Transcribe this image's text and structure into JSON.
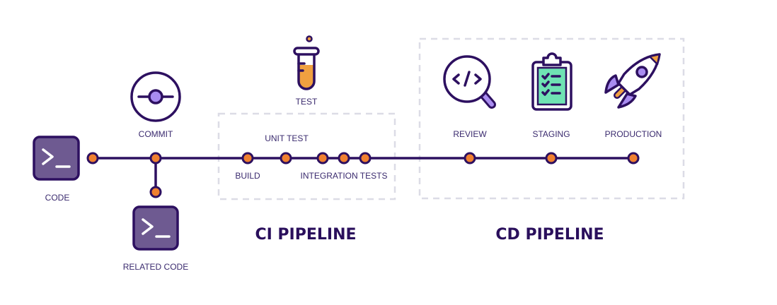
{
  "labels": {
    "code": "CODE",
    "related_code": "RELATED CODE",
    "commit": "COMMIT",
    "test": "TEST",
    "unit_test": "UNIT TEST",
    "build": "BUILD",
    "integration_tests": "INTEGRATION TESTS",
    "review": "REVIEW",
    "staging": "STAGING",
    "production": "PRODUCTION"
  },
  "sections": {
    "ci": "CI PIPELINE",
    "cd": "CD PIPELINE"
  },
  "icons": {
    "code": "terminal-icon",
    "commit": "commit-icon",
    "test": "test-tube-icon",
    "review": "code-magnifier-icon",
    "staging": "clipboard-checklist-icon",
    "production": "rocket-icon"
  },
  "colors": {
    "line": "#2d1060",
    "node": "#f08030",
    "accent": "#a98cf0",
    "terminal_fill": "#6e5a91",
    "checklist": "#6fe3b3",
    "tube_liquid": "#f0a040"
  }
}
